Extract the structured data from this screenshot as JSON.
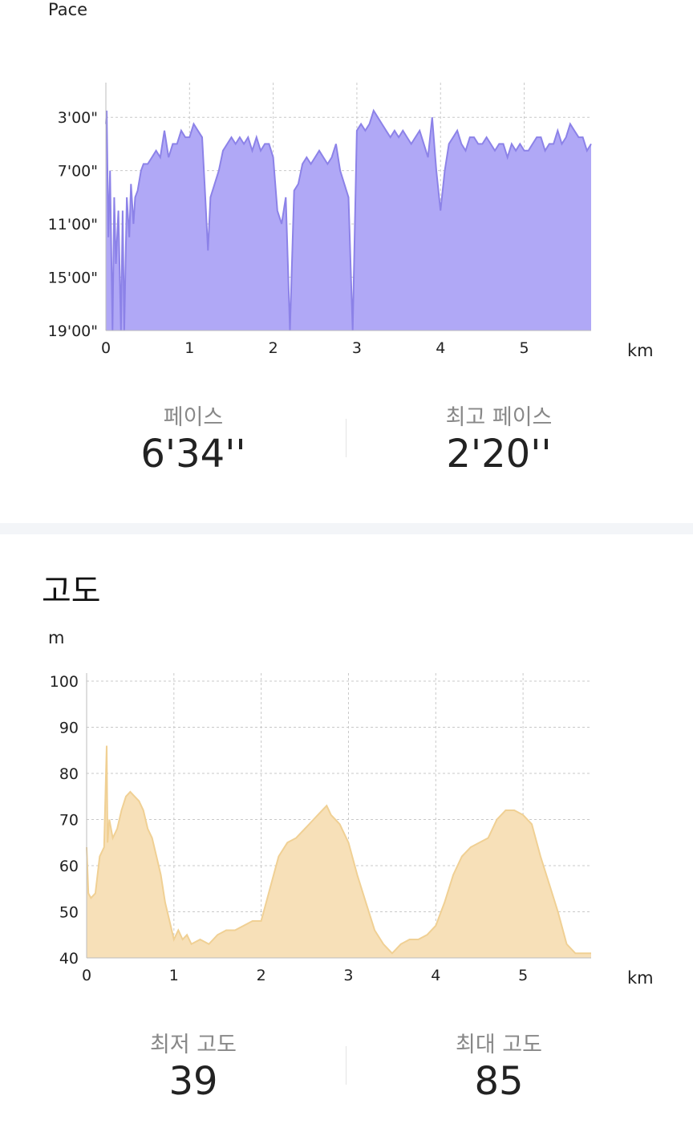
{
  "pace": {
    "unit_label": "Pace",
    "x_unit": "km",
    "stats": [
      {
        "label": "페이스",
        "value": "6'34''"
      },
      {
        "label": "최고 페이스",
        "value": "2'20''"
      }
    ],
    "colors": {
      "fill": "#b0a8f6",
      "line": "#8c82e8"
    },
    "chart_data": {
      "type": "area",
      "xlabel": "km",
      "ylabel": "Pace",
      "y_inverted": true,
      "x_ticks": [
        0,
        1,
        2,
        3,
        4,
        5
      ],
      "x_tick_labels": [
        "0",
        "1",
        "2",
        "3",
        "4",
        "5"
      ],
      "y_ticks": [
        3,
        7,
        11,
        15,
        19
      ],
      "y_tick_labels": [
        "3'00\"",
        "7'00\"",
        "11'00\"",
        "15'00\"",
        "19'00\""
      ],
      "xlim": [
        0,
        5.8
      ],
      "ylim": [
        1,
        19
      ],
      "grid": true,
      "series": [
        {
          "x": [
            0,
            0.01,
            0.03,
            0.05,
            0.08,
            0.1,
            0.12,
            0.15,
            0.18,
            0.2,
            0.22,
            0.25,
            0.28,
            0.3,
            0.33,
            0.35,
            0.38,
            0.42,
            0.45,
            0.5,
            0.55,
            0.6,
            0.65,
            0.7,
            0.75,
            0.8,
            0.85,
            0.9,
            0.95,
            1.0,
            1.05,
            1.1,
            1.15,
            1.18,
            1.22,
            1.25,
            1.3,
            1.35,
            1.4,
            1.45,
            1.5,
            1.55,
            1.6,
            1.65,
            1.7,
            1.75,
            1.8,
            1.85,
            1.9,
            1.95,
            2.0,
            2.05,
            2.1,
            2.15,
            2.2,
            2.25,
            2.3,
            2.35,
            2.4,
            2.45,
            2.5,
            2.55,
            2.6,
            2.65,
            2.7,
            2.75,
            2.8,
            2.85,
            2.9,
            2.95,
            3.0,
            3.05,
            3.1,
            3.15,
            3.2,
            3.25,
            3.3,
            3.35,
            3.4,
            3.45,
            3.5,
            3.55,
            3.6,
            3.65,
            3.7,
            3.75,
            3.8,
            3.85,
            3.9,
            3.95,
            4.0,
            4.05,
            4.1,
            4.15,
            4.2,
            4.25,
            4.3,
            4.35,
            4.4,
            4.45,
            4.5,
            4.55,
            4.6,
            4.65,
            4.7,
            4.75,
            4.8,
            4.85,
            4.9,
            4.95,
            5.0,
            5.05,
            5.1,
            5.15,
            5.2,
            5.25,
            5.3,
            5.35,
            5.4,
            5.45,
            5.5,
            5.55,
            5.6,
            5.65,
            5.7,
            5.75,
            5.8
          ],
          "y": [
            3.5,
            2.5,
            12,
            7,
            19,
            9,
            14,
            10,
            19,
            10,
            19,
            9,
            12,
            8,
            11,
            9,
            8.5,
            7,
            6.5,
            6.5,
            6,
            5.5,
            6,
            4,
            6,
            5,
            5,
            4,
            4.5,
            4.5,
            3.5,
            4,
            4.5,
            8,
            13,
            9,
            8,
            7,
            5.5,
            5,
            4.5,
            5,
            4.5,
            5,
            4.5,
            5.5,
            4.5,
            5.5,
            5,
            5,
            6,
            10,
            11,
            9,
            19,
            8.5,
            8,
            6.5,
            6,
            6.5,
            6,
            5.5,
            6,
            6.5,
            6,
            5,
            7,
            8,
            9,
            19,
            4,
            3.5,
            4,
            3.5,
            2.5,
            3,
            3.5,
            4,
            4.5,
            4,
            4.5,
            4,
            4.5,
            5,
            4.5,
            4,
            5,
            6,
            3,
            7,
            10,
            7,
            5,
            4.5,
            4,
            5,
            5.5,
            4.5,
            4.5,
            5,
            5,
            4.5,
            5,
            5.5,
            5,
            5,
            6,
            5,
            5.5,
            5,
            5.5,
            5.5,
            5,
            4.5,
            4.5,
            5.5,
            5,
            5,
            4,
            5,
            4.5,
            3.5,
            4,
            4.5,
            4.5,
            5.5,
            5
          ]
        }
      ]
    }
  },
  "altitude": {
    "section_title": "고도",
    "unit_label": "m",
    "x_unit": "km",
    "stats": [
      {
        "label": "최저 고도",
        "value": "39"
      },
      {
        "label": "최대 고도",
        "value": "85"
      }
    ],
    "colors": {
      "fill": "#f7e0b8",
      "line": "#f0d094"
    },
    "chart_data": {
      "type": "area",
      "xlabel": "km",
      "ylabel": "m",
      "x_ticks": [
        0,
        1,
        2,
        3,
        4,
        5
      ],
      "x_tick_labels": [
        "0",
        "1",
        "2",
        "3",
        "4",
        "5"
      ],
      "y_ticks": [
        40,
        50,
        60,
        70,
        80,
        90,
        100
      ],
      "y_tick_labels": [
        "40",
        "50",
        "60",
        "70",
        "80",
        "90",
        "100"
      ],
      "xlim": [
        0,
        5.78
      ],
      "ylim": [
        40,
        100
      ],
      "grid": true,
      "series": [
        {
          "x": [
            0,
            0.02,
            0.05,
            0.1,
            0.15,
            0.2,
            0.23,
            0.24,
            0.26,
            0.3,
            0.35,
            0.4,
            0.45,
            0.5,
            0.55,
            0.6,
            0.65,
            0.7,
            0.75,
            0.8,
            0.85,
            0.9,
            0.95,
            1.0,
            1.05,
            1.1,
            1.15,
            1.2,
            1.3,
            1.4,
            1.5,
            1.6,
            1.7,
            1.8,
            1.9,
            2.0,
            2.1,
            2.2,
            2.3,
            2.4,
            2.5,
            2.6,
            2.7,
            2.75,
            2.8,
            2.85,
            2.9,
            3.0,
            3.1,
            3.2,
            3.3,
            3.4,
            3.5,
            3.6,
            3.7,
            3.8,
            3.9,
            4.0,
            4.1,
            4.2,
            4.3,
            4.4,
            4.5,
            4.6,
            4.7,
            4.8,
            4.9,
            5.0,
            5.1,
            5.2,
            5.3,
            5.4,
            5.5,
            5.6,
            5.7,
            5.78
          ],
          "y": [
            64,
            54,
            53,
            54,
            62,
            64,
            86,
            65,
            70,
            66,
            68,
            72,
            75,
            76,
            75,
            74,
            72,
            68,
            66,
            62,
            58,
            52,
            48,
            44,
            46,
            44,
            45,
            43,
            44,
            43,
            45,
            46,
            46,
            47,
            48,
            48,
            55,
            62,
            65,
            66,
            68,
            70,
            72,
            73,
            71,
            70,
            69,
            65,
            58,
            52,
            46,
            43,
            41,
            43,
            44,
            44,
            45,
            47,
            52,
            58,
            62,
            64,
            65,
            66,
            70,
            72,
            72,
            71,
            69,
            62,
            56,
            50,
            43,
            41,
            41,
            41
          ]
        }
      ]
    }
  }
}
